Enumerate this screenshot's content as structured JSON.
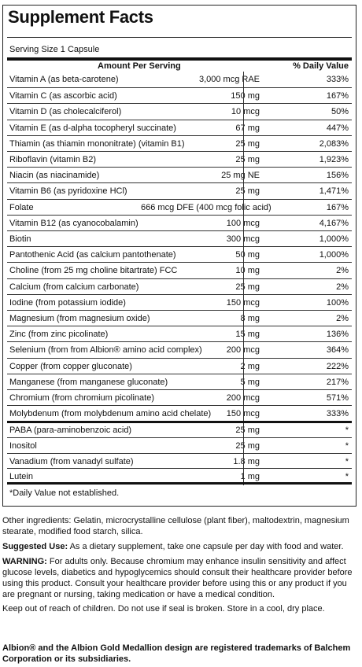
{
  "panel": {
    "title": "Supplement Facts",
    "serving_size": "Serving Size 1 Capsule",
    "header_amount": "Amount Per Serving",
    "header_dv": "% Daily Value",
    "rows": [
      {
        "name": "Vitamin A (as beta-carotene)",
        "amount": "3,000 mcg RAE",
        "dv": "333%"
      },
      {
        "name": "Vitamin C (as ascorbic acid)",
        "amount": "150 mg",
        "dv": "167%"
      },
      {
        "name": "Vitamin D (as cholecalciferol)",
        "amount": "10 mcg",
        "dv": "50%"
      },
      {
        "name": "Vitamin E (as d-alpha tocopheryl succinate)",
        "amount": "67 mg",
        "dv": "447%"
      },
      {
        "name": "Thiamin (as thiamin mononitrate) (vitamin B1)",
        "amount": "25 mg",
        "dv": "2,083%"
      },
      {
        "name": "Riboflavin (vitamin B2)",
        "amount": "25 mg",
        "dv": "1,923%"
      },
      {
        "name": "Niacin (as niacinamide)",
        "amount": "25 mg NE",
        "dv": "156%"
      },
      {
        "name": "Vitamin B6 (as pyridoxine HCl)",
        "amount": "25 mg",
        "dv": "1,471%"
      },
      {
        "name": "Folate",
        "amount": "666 mcg DFE (400 mcg folic acid)",
        "dv": "167%"
      },
      {
        "name": "Vitamin B12 (as cyanocobalamin)",
        "amount": "100 mcg",
        "dv": "4,167%"
      },
      {
        "name": "Biotin",
        "amount": "300 mcg",
        "dv": "1,000%"
      },
      {
        "name": "Pantothenic Acid (as calcium pantothenate)",
        "amount": "50 mg",
        "dv": "1,000%"
      },
      {
        "name": "Choline (from 25 mg choline bitartrate) FCC",
        "amount": "10 mg",
        "dv": "2%"
      },
      {
        "name": "Calcium (from calcium carbonate)",
        "amount": "25 mg",
        "dv": "2%"
      },
      {
        "name": "Iodine (from potassium iodide)",
        "amount": "150 mcg",
        "dv": "100%"
      },
      {
        "name": "Magnesium (from magnesium oxide)",
        "amount": "8 mg",
        "dv": "2%"
      },
      {
        "name": "Zinc (from zinc picolinate)",
        "amount": "15 mg",
        "dv": "136%"
      },
      {
        "name": "Selenium (from from Albion® amino acid complex)",
        "amount": "200 mcg",
        "dv": "364%"
      },
      {
        "name": "Copper (from copper gluconate)",
        "amount": "2 mg",
        "dv": "222%"
      },
      {
        "name": "Manganese (from manganese gluconate)",
        "amount": "5 mg",
        "dv": "217%"
      },
      {
        "name": "Chromium (from chromium picolinate)",
        "amount": "200 mcg",
        "dv": "571%"
      },
      {
        "name": "Molybdenum (from molybdenum amino acid chelate)",
        "amount": "150 mcg",
        "dv": "333%"
      },
      {
        "name": "PABA (para-aminobenzoic acid)",
        "amount": "25 mg",
        "dv": "*"
      },
      {
        "name": "Inositol",
        "amount": "25 mg",
        "dv": "*"
      },
      {
        "name": "Vanadium (from vanadyl sulfate)",
        "amount": "1.8 mg",
        "dv": "*"
      },
      {
        "name": "Lutein",
        "amount": "1 mg",
        "dv": "*"
      }
    ],
    "footnote": "*Daily Value not established."
  },
  "other_ingredients": "Other ingredients: Gelatin, microcrystalline cellulose (plant fiber), maltodextrin, magnesium stearate, modified food starch, silica.",
  "suggested_use_label": "Suggested Use:",
  "suggested_use": "As a dietary supplement, take one capsule per day with food and water.",
  "warning_label": "WARNING:",
  "warning": "For adults only. Because chromium may enhance insulin sensitivity and affect glucose levels, diabetics and hypoglycemics should consult their healthcare provider before using this product. Consult your healthcare provider before using this or any product if you are pregnant or nursing, taking medication or have a medical condition.",
  "storage": "Keep out of reach of children. Do not use if seal is broken. Store in a cool, dry place.",
  "trademark": "Albion® and the Albion Gold Medallion design are registered trademarks of Balchem Corporation or its subsidiaries."
}
